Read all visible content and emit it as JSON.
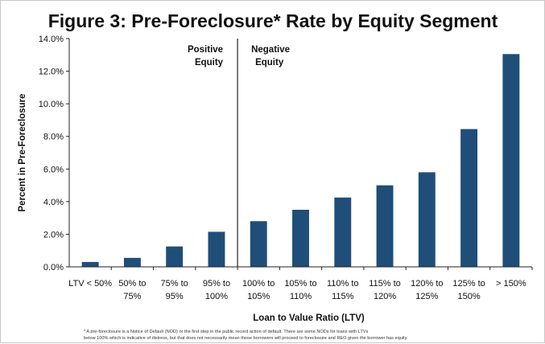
{
  "chart_data": {
    "type": "bar",
    "title": "Figure 3: Pre-Foreclosure* Rate by Equity Segment",
    "xlabel": "Loan to Value Ratio (LTV)",
    "ylabel": "Percent in Pre-Foreclosure",
    "ylim": [
      0,
      14
    ],
    "yticks": [
      "0.0%",
      "2.0%",
      "4.0%",
      "6.0%",
      "8.0%",
      "10.0%",
      "12.0%",
      "14.0%"
    ],
    "grid": false,
    "bar_color": "#1f4e79",
    "categories": [
      "LTV < 50%",
      "50% to 75%",
      "75% to 95%",
      "95% to 100%",
      "100% to 105%",
      "105% to 110%",
      "110% to 115%",
      "115% to 120%",
      "120% to 125%",
      "125% to 150%",
      "> 150%"
    ],
    "category_lines": [
      [
        "LTV < 50%"
      ],
      [
        "50% to",
        "75%"
      ],
      [
        "75% to",
        "95%"
      ],
      [
        "95% to",
        "100%"
      ],
      [
        "100% to",
        "105%"
      ],
      [
        "105% to",
        "110%"
      ],
      [
        "110% to",
        "115%"
      ],
      [
        "115% to",
        "120%"
      ],
      [
        "120% to",
        "125%"
      ],
      [
        "125% to",
        "150%"
      ],
      [
        "> 150%"
      ]
    ],
    "values": [
      0.3,
      0.55,
      1.25,
      2.15,
      2.8,
      3.5,
      4.25,
      5.0,
      5.8,
      8.45,
      13.05
    ],
    "annotations": {
      "positive_equity": [
        "Positive",
        "Equity"
      ],
      "negative_equity": [
        "Negative",
        "Equity"
      ]
    },
    "divider_after_category_index": 3
  },
  "footnote": [
    "* A pre-foreclosure is a Notice of Default (NOD) or the first step in the public record action of default. There are some NODs for loans with LTVs",
    "below 100% which is indicative of distress, but that does not necessarily mean those borrowers will proceed to foreclosure and REO given the borrower has equity."
  ]
}
